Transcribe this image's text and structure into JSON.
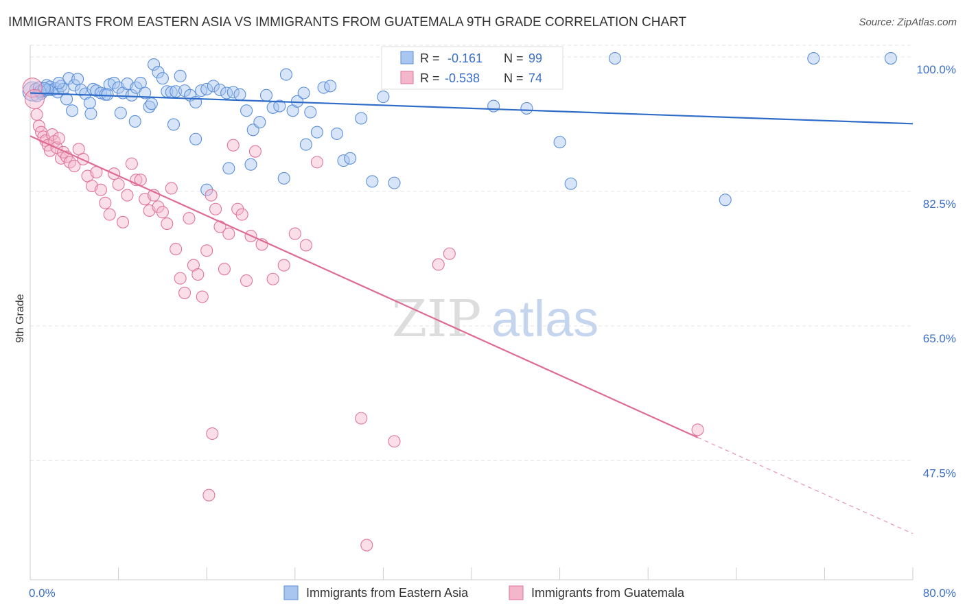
{
  "header": {
    "title": "IMMIGRANTS FROM EASTERN ASIA VS IMMIGRANTS FROM GUATEMALA 9TH GRADE CORRELATION CHART",
    "source": "Source: ZipAtlas.com"
  },
  "watermark": {
    "zip": "ZIP",
    "atlas": "atlas"
  },
  "chart_data": {
    "type": "scatter",
    "title": "IMMIGRANTS FROM EASTERN ASIA VS IMMIGRANTS FROM GUATEMALA 9TH GRADE CORRELATION CHART",
    "ylabel": "9th Grade",
    "xlabel": "",
    "xlim": [
      0,
      80
    ],
    "ylim": [
      32,
      101.5
    ],
    "x_tick_labels": [
      {
        "value": 0,
        "label": "0.0%"
      },
      {
        "value": 80,
        "label": "80.0%"
      }
    ],
    "y_tick_labels": [
      {
        "value": 100,
        "label": "100.0%"
      },
      {
        "value": 82.5,
        "label": "82.5%"
      },
      {
        "value": 65,
        "label": "65.0%"
      },
      {
        "value": 47.5,
        "label": "47.5%"
      }
    ],
    "grid": true,
    "legend_position": "bottom",
    "stats": [
      {
        "r_label": "R =",
        "r_value": "-0.161",
        "n_label": "N =",
        "n_value": "99"
      },
      {
        "r_label": "R =",
        "r_value": "-0.538",
        "n_label": "N =",
        "n_value": "74"
      }
    ],
    "series": [
      {
        "name": "Immigrants from Eastern Asia",
        "color": "#5b8fd9",
        "fill": "#a9c6f0",
        "trend": {
          "x0": 0,
          "y0": 95.3,
          "x1": 80,
          "y1": 91.3
        },
        "points": [
          [
            0.2,
            95.5
          ],
          [
            0.5,
            95.8
          ],
          [
            0.8,
            96.0
          ],
          [
            1.0,
            95.2
          ],
          [
            1.2,
            95.6
          ],
          [
            1.5,
            96.3
          ],
          [
            1.8,
            96.1
          ],
          [
            2.0,
            95.7
          ],
          [
            2.3,
            95.9
          ],
          [
            2.5,
            95.4
          ],
          [
            2.8,
            96.2
          ],
          [
            3.0,
            95.8
          ],
          [
            3.3,
            94.5
          ],
          [
            3.5,
            97.2
          ],
          [
            4.0,
            96.3
          ],
          [
            4.3,
            97.1
          ],
          [
            4.6,
            95.7
          ],
          [
            5.0,
            95.2
          ],
          [
            5.4,
            94.0
          ],
          [
            5.7,
            95.8
          ],
          [
            6.0,
            95.6
          ],
          [
            6.4,
            95.3
          ],
          [
            6.8,
            95.1
          ],
          [
            7.2,
            96.4
          ],
          [
            7.6,
            96.6
          ],
          [
            8.0,
            96.0
          ],
          [
            8.4,
            95.3
          ],
          [
            8.8,
            96.5
          ],
          [
            9.2,
            95.0
          ],
          [
            9.6,
            96.0
          ],
          [
            10.0,
            96.6
          ],
          [
            10.4,
            95.3
          ],
          [
            10.8,
            93.5
          ],
          [
            11.2,
            99.0
          ],
          [
            11.6,
            98.0
          ],
          [
            12.0,
            97.2
          ],
          [
            12.4,
            95.5
          ],
          [
            12.8,
            95.4
          ],
          [
            13.2,
            95.5
          ],
          [
            13.6,
            97.5
          ],
          [
            14.0,
            95.6
          ],
          [
            14.5,
            95.0
          ],
          [
            15.0,
            94.1
          ],
          [
            15.5,
            95.6
          ],
          [
            16.0,
            95.8
          ],
          [
            16.6,
            96.2
          ],
          [
            17.2,
            95.7
          ],
          [
            17.8,
            95.3
          ],
          [
            18.4,
            95.4
          ],
          [
            19.0,
            95.1
          ],
          [
            19.6,
            93.0
          ],
          [
            20.2,
            90.5
          ],
          [
            20.8,
            91.5
          ],
          [
            21.4,
            95.0
          ],
          [
            22.0,
            93.4
          ],
          [
            22.6,
            93.6
          ],
          [
            23.2,
            97.7
          ],
          [
            23.8,
            93.0
          ],
          [
            24.2,
            94.2
          ],
          [
            24.8,
            95.3
          ],
          [
            25.4,
            92.8
          ],
          [
            26.0,
            90.2
          ],
          [
            26.6,
            96.0
          ],
          [
            27.2,
            96.2
          ],
          [
            27.8,
            90.0
          ],
          [
            28.4,
            86.5
          ],
          [
            29.0,
            86.8
          ],
          [
            30.0,
            92.0
          ],
          [
            31.0,
            83.8
          ],
          [
            32.0,
            94.8
          ],
          [
            33.0,
            83.6
          ],
          [
            35.0,
            99.6
          ],
          [
            39.0,
            99.8
          ],
          [
            42.0,
            93.6
          ],
          [
            45.0,
            93.3
          ],
          [
            48.0,
            88.9
          ],
          [
            49.0,
            83.5
          ],
          [
            53.0,
            99.8
          ],
          [
            63.0,
            81.4
          ],
          [
            71.0,
            99.8
          ],
          [
            78.0,
            99.8
          ],
          [
            25.0,
            88.6
          ],
          [
            23.0,
            84.2
          ],
          [
            20.0,
            86.0
          ],
          [
            18.0,
            85.5
          ],
          [
            16.0,
            82.7
          ],
          [
            15.0,
            89.3
          ],
          [
            13.0,
            91.2
          ],
          [
            11.0,
            93.9
          ],
          [
            9.5,
            91.6
          ],
          [
            8.2,
            92.7
          ],
          [
            7.0,
            95.1
          ],
          [
            5.5,
            92.6
          ],
          [
            3.8,
            93.0
          ],
          [
            2.6,
            96.6
          ],
          [
            1.6,
            95.7
          ],
          [
            0.6,
            94.9
          ],
          [
            0.9,
            95.5
          ],
          [
            1.3,
            95.9
          ]
        ]
      },
      {
        "name": "Immigrants from Guatemala",
        "color": "#e0759a",
        "fill": "#f4b6cb",
        "trend": {
          "x0": 0,
          "y0": 89.7,
          "x1": 60.5,
          "y1": 50.5
        },
        "trend_extension": {
          "x0": 60.5,
          "y0": 50.5,
          "x1": 80,
          "y1": 38.0
        },
        "points": [
          [
            0.2,
            96.0
          ],
          [
            0.4,
            94.5
          ],
          [
            0.6,
            92.5
          ],
          [
            0.8,
            91.0
          ],
          [
            1.0,
            90.2
          ],
          [
            1.2,
            89.6
          ],
          [
            1.4,
            89.1
          ],
          [
            1.6,
            88.5
          ],
          [
            1.8,
            87.8
          ],
          [
            2.0,
            89.9
          ],
          [
            2.2,
            89.0
          ],
          [
            2.4,
            88.2
          ],
          [
            2.6,
            89.4
          ],
          [
            2.8,
            86.8
          ],
          [
            3.0,
            87.6
          ],
          [
            3.3,
            87.0
          ],
          [
            3.6,
            86.3
          ],
          [
            4.0,
            85.8
          ],
          [
            4.4,
            88.0
          ],
          [
            4.8,
            86.7
          ],
          [
            5.2,
            84.5
          ],
          [
            5.6,
            83.2
          ],
          [
            6.0,
            85.0
          ],
          [
            6.4,
            82.7
          ],
          [
            6.8,
            81.0
          ],
          [
            7.2,
            79.5
          ],
          [
            7.6,
            84.8
          ],
          [
            8.0,
            83.4
          ],
          [
            8.4,
            78.5
          ],
          [
            8.8,
            82.0
          ],
          [
            9.2,
            86.1
          ],
          [
            9.6,
            84.0
          ],
          [
            10.0,
            84.0
          ],
          [
            10.4,
            81.5
          ],
          [
            10.8,
            80.0
          ],
          [
            11.2,
            82.0
          ],
          [
            11.6,
            80.5
          ],
          [
            12.0,
            79.8
          ],
          [
            12.4,
            78.3
          ],
          [
            12.8,
            82.9
          ],
          [
            13.2,
            75.0
          ],
          [
            13.6,
            71.2
          ],
          [
            14.0,
            69.3
          ],
          [
            14.4,
            79.0
          ],
          [
            14.8,
            72.9
          ],
          [
            15.2,
            71.7
          ],
          [
            15.6,
            68.8
          ],
          [
            16.0,
            74.8
          ],
          [
            16.4,
            82.0
          ],
          [
            16.8,
            80.2
          ],
          [
            17.2,
            77.9
          ],
          [
            17.6,
            72.4
          ],
          [
            18.0,
            77.0
          ],
          [
            18.4,
            88.5
          ],
          [
            18.8,
            80.2
          ],
          [
            19.2,
            79.5
          ],
          [
            19.6,
            70.9
          ],
          [
            20.0,
            76.7
          ],
          [
            20.4,
            87.7
          ],
          [
            21.0,
            75.6
          ],
          [
            22.0,
            71.1
          ],
          [
            23.0,
            72.9
          ],
          [
            24.0,
            77.0
          ],
          [
            25.0,
            75.5
          ],
          [
            26.0,
            86.3
          ],
          [
            30.0,
            53.0
          ],
          [
            33.0,
            50.0
          ],
          [
            37.0,
            73.0
          ],
          [
            38.0,
            74.4
          ],
          [
            16.5,
            51.0
          ],
          [
            16.2,
            43.0
          ],
          [
            30.5,
            36.5
          ],
          [
            60.5,
            51.5
          ],
          [
            38.5,
            96.8
          ]
        ]
      }
    ]
  },
  "legend": {
    "items": [
      {
        "label": "Immigrants from Eastern Asia"
      },
      {
        "label": "Immigrants from Guatemala"
      }
    ]
  }
}
